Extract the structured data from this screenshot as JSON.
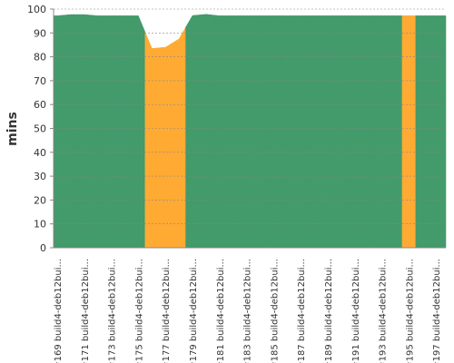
{
  "chart_data": {
    "type": "area",
    "y_label": "mins",
    "categories": [
      "#169 build4-deb12bui...",
      null,
      "#171 build4-deb12bui...",
      null,
      "#173 build4-deb12bui...",
      null,
      "#175 build4-deb12bui...",
      null,
      "#177 build4-deb12bui...",
      null,
      "#179 build4-deb12bui...",
      null,
      "#181 build4-deb12bui...",
      null,
      "#183 build4-deb12bui...",
      null,
      "#185 build4-deb12bui...",
      null,
      "#187 build4-deb12bui...",
      null,
      "#189 build4-deb12bui...",
      null,
      "#191 build4-deb12bui...",
      null,
      "#193 build4-deb12bui...",
      null,
      "#195 build4-deb12bui...",
      null,
      "#197 build4-deb12bui..."
    ],
    "values": [
      97.2,
      97.7,
      97.7,
      97.2,
      97.2,
      97.2,
      97.2,
      83.5,
      84,
      87.5,
      97.3,
      97.8,
      97.2,
      97.2,
      97.2,
      97.2,
      97.2,
      97.2,
      97.2,
      97.2,
      97.2,
      97.2,
      97.2,
      97.2,
      97.2,
      97.2,
      97.2,
      97.2,
      97.2
    ],
    "colors": [
      "#439a6b",
      "#439a6b",
      "#439a6b",
      "#439a6b",
      "#439a6b",
      "#439a6b",
      "#439a6b",
      "#ffaa33",
      "#ffaa33",
      "#ffaa33",
      "#439a6b",
      "#439a6b",
      "#439a6b",
      "#439a6b",
      "#439a6b",
      "#439a6b",
      "#439a6b",
      "#439a6b",
      "#439a6b",
      "#439a6b",
      "#439a6b",
      "#439a6b",
      "#439a6b",
      "#439a6b",
      "#439a6b",
      "#439a6b",
      "#ffaa33",
      "#439a6b",
      "#439a6b"
    ],
    "ylim": [
      0,
      100
    ],
    "yticks": [
      0,
      10,
      20,
      30,
      40,
      50,
      60,
      70,
      80,
      90,
      100
    ],
    "grid": true
  }
}
